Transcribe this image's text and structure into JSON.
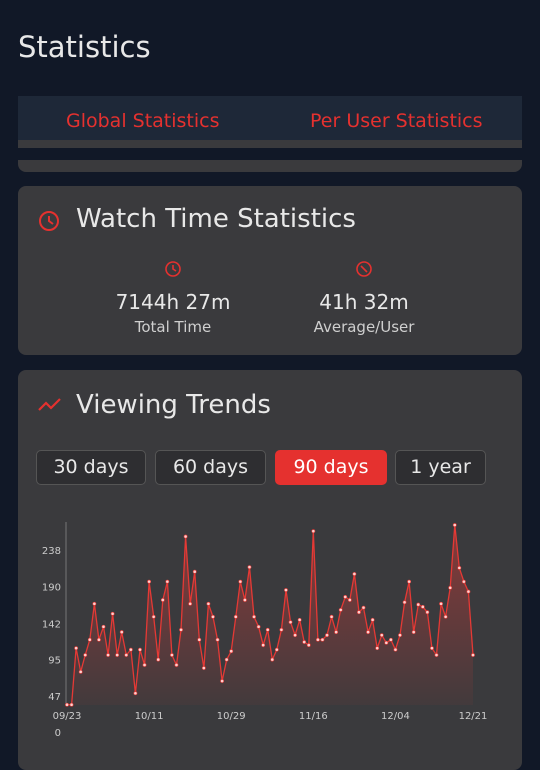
{
  "header": {
    "title": "Statistics"
  },
  "tabs": [
    "Global Statistics",
    "Per User Statistics"
  ],
  "watch_time": {
    "title": "Watch Time Statistics",
    "stats": [
      {
        "value": "7144h 27m",
        "label": "Total Time"
      },
      {
        "value": "41h 32m",
        "label": "Average/User"
      }
    ]
  },
  "trends": {
    "title": "Viewing Trends",
    "ranges": [
      "30 days",
      "60 days",
      "90 days",
      "1 year"
    ]
  },
  "chart_data": {
    "type": "line",
    "color": "#e53935",
    "categories": [
      "09/23",
      null,
      null,
      null,
      null,
      null,
      null,
      null,
      null,
      null,
      null,
      null,
      null,
      null,
      null,
      null,
      null,
      null,
      "10/11",
      null,
      null,
      null,
      null,
      null,
      null,
      null,
      null,
      null,
      null,
      null,
      null,
      null,
      null,
      null,
      null,
      null,
      "10/29",
      null,
      null,
      null,
      null,
      null,
      null,
      null,
      null,
      null,
      null,
      null,
      null,
      null,
      null,
      null,
      null,
      null,
      "11/16",
      null,
      null,
      null,
      null,
      null,
      null,
      null,
      null,
      null,
      null,
      null,
      null,
      null,
      null,
      null,
      null,
      null,
      "12/04",
      null,
      null,
      null,
      null,
      null,
      null,
      null,
      null,
      null,
      null,
      null,
      null,
      null,
      null,
      null,
      null,
      "12/21"
    ],
    "values": [
      37,
      37,
      111,
      80,
      102,
      122,
      169,
      122,
      139,
      102,
      156,
      102,
      132,
      102,
      109,
      52,
      109,
      89,
      198,
      152,
      96,
      174,
      198,
      102,
      89,
      135,
      257,
      169,
      211,
      122,
      85,
      169,
      152,
      122,
      68,
      96,
      107,
      152,
      198,
      174,
      217,
      152,
      139,
      115,
      135,
      96,
      109,
      135,
      187,
      145,
      128,
      148,
      119,
      115,
      264,
      122,
      122,
      128,
      152,
      132,
      161,
      178,
      174,
      208,
      158,
      164,
      132,
      148,
      111,
      128,
      118,
      122,
      109,
      128,
      171,
      198,
      132,
      168,
      165,
      158,
      111,
      102,
      169,
      152,
      190,
      272,
      216,
      198,
      185,
      102
    ],
    "ylim": [
      0,
      276
    ],
    "yticks": [
      0,
      47,
      95,
      142,
      190,
      238
    ],
    "grid": false
  }
}
